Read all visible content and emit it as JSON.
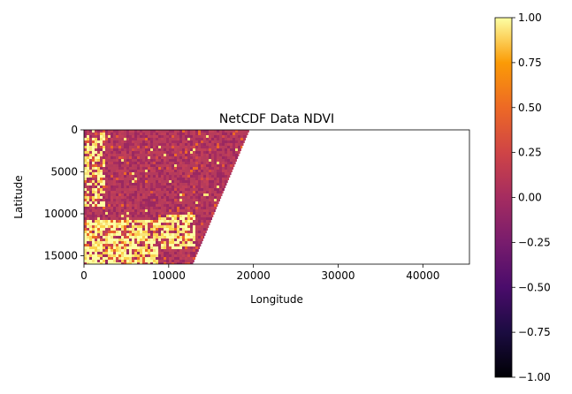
{
  "chart_data": {
    "type": "heatmap",
    "title": "NetCDF Data NDVI",
    "xlabel": "Longitude",
    "ylabel": "Latitude",
    "xlim": [
      0,
      45500
    ],
    "ylim": [
      16000,
      0
    ],
    "y_inverted": true,
    "xticks": [
      0,
      10000,
      20000,
      30000,
      40000
    ],
    "xtick_labels": [
      "0",
      "10000",
      "20000",
      "30000",
      "40000"
    ],
    "yticks": [
      0,
      5000,
      10000,
      15000
    ],
    "ytick_labels": [
      "0",
      "5000",
      "10000",
      "15000"
    ],
    "colormap": "inferno",
    "colorbar": {
      "range": [
        -1.0,
        1.0
      ],
      "ticks": [
        1.0,
        0.75,
        0.5,
        0.25,
        0.0,
        -0.25,
        -0.5,
        -0.75,
        -1.0
      ],
      "tick_labels": [
        "1.00",
        "0.75",
        "0.50",
        "0.25",
        "0.00",
        "−0.25",
        "−0.50",
        "−0.75",
        "−1.00"
      ]
    },
    "data_region": {
      "description_polygon_data_units": [
        [
          0,
          0
        ],
        [
          19500,
          0
        ],
        [
          12800,
          16000
        ],
        [
          0,
          16000
        ]
      ],
      "dominant_value": 0.1,
      "high_value_zones": [
        {
          "x_range": [
            0,
            8500
          ],
          "y_range": [
            10500,
            16000
          ],
          "value": 0.9
        },
        {
          "x_range": [
            0,
            2500
          ],
          "y_range": [
            0,
            9000
          ],
          "value": 0.7
        },
        {
          "x_range": [
            8500,
            13000
          ],
          "y_range": [
            10000,
            14000
          ],
          "value": 0.8
        }
      ]
    },
    "grid": false
  },
  "colors": {
    "background": "#ffffff",
    "axis": "#000000"
  }
}
